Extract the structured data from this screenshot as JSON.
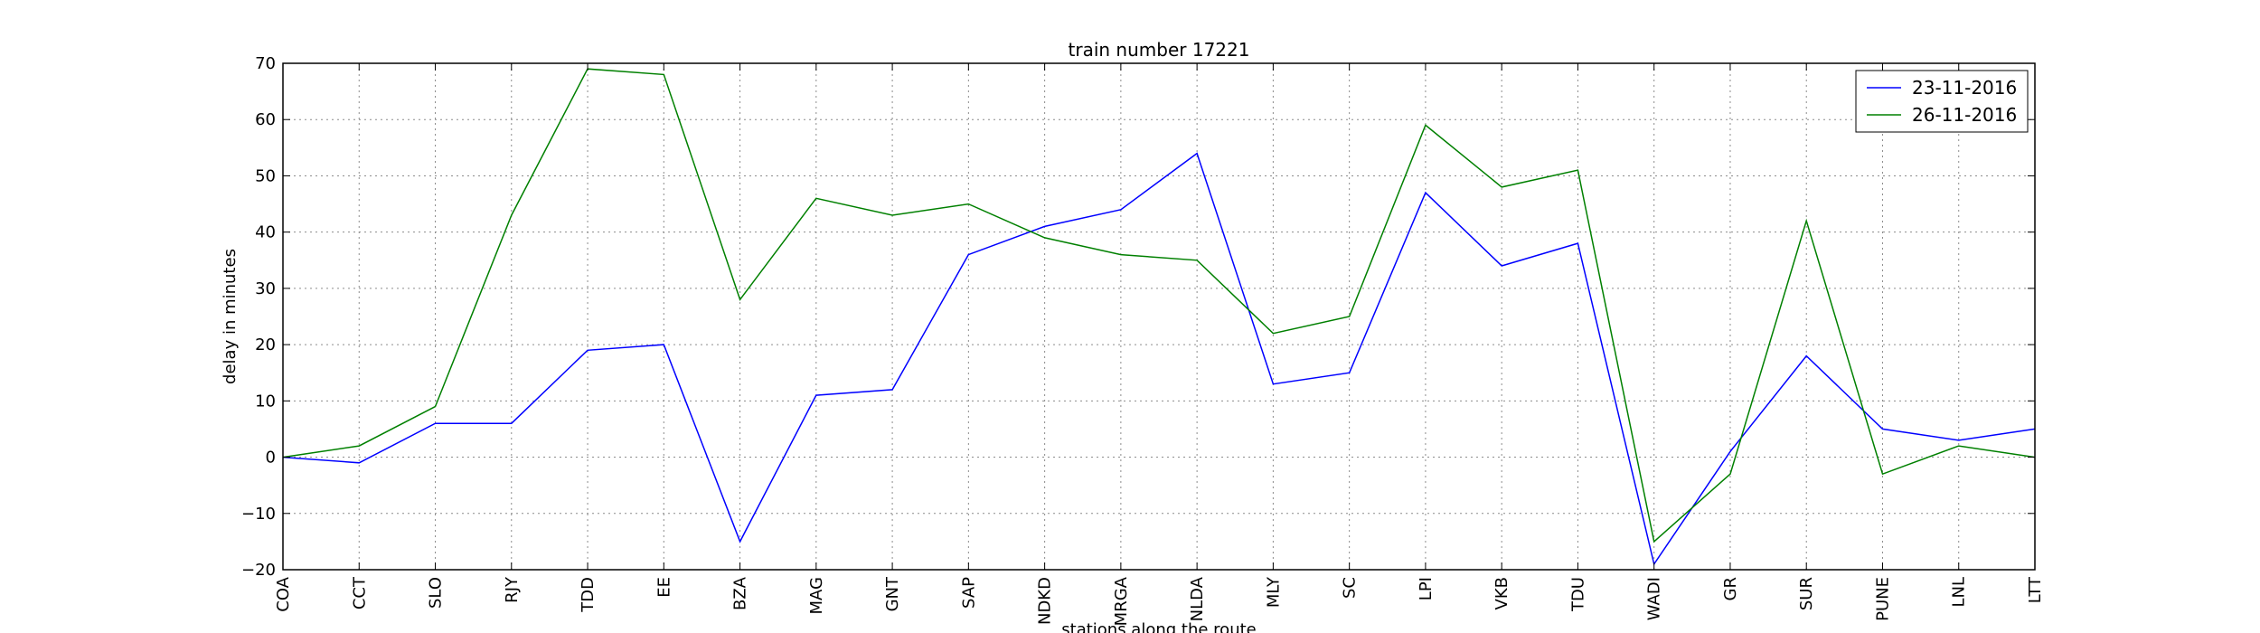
{
  "chart_data": {
    "type": "line",
    "title": "train number 17221",
    "xlabel": "stations along the route",
    "ylabel": "delay in minutes",
    "categories": [
      "COA",
      "CCT",
      "SLO",
      "RJY",
      "TDD",
      "EE",
      "BZA",
      "MAG",
      "GNT",
      "SAP",
      "NDKD",
      "MRGA",
      "NLDA",
      "MLY",
      "SC",
      "LPI",
      "VKB",
      "TDU",
      "WADI",
      "GR",
      "SUR",
      "PUNE",
      "LNL",
      "LTT"
    ],
    "ylim": [
      -20,
      70
    ],
    "yticks": [
      -20,
      -10,
      0,
      10,
      20,
      30,
      40,
      50,
      60,
      70
    ],
    "yticklabels": [
      "−20",
      "−10",
      "0",
      "10",
      "20",
      "30",
      "40",
      "50",
      "60",
      "70"
    ],
    "grid": true,
    "legend_position": "top-right",
    "series": [
      {
        "name": "23-11-2016",
        "color": "#0000ff",
        "values": [
          0,
          -1,
          6,
          6,
          19,
          20,
          -15,
          11,
          12,
          36,
          41,
          44,
          54,
          13,
          15,
          47,
          34,
          38,
          -19,
          1,
          18,
          5,
          3,
          5
        ]
      },
      {
        "name": "26-11-2016",
        "color": "#008000",
        "values": [
          0,
          2,
          9,
          43,
          69,
          68,
          28,
          46,
          43,
          45,
          39,
          36,
          35,
          22,
          25,
          59,
          48,
          51,
          -15,
          -3,
          42,
          -3,
          2,
          0
        ]
      }
    ]
  }
}
